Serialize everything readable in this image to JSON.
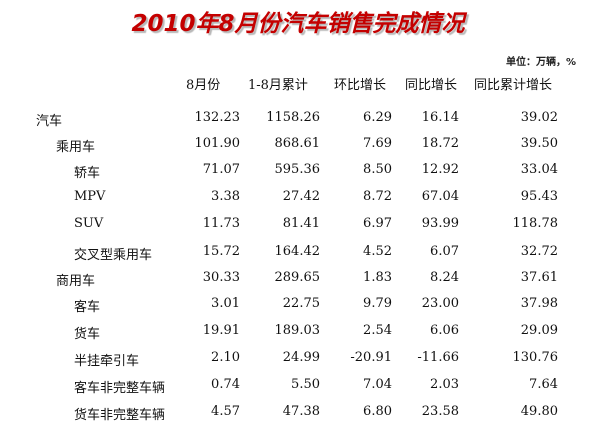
{
  "title": "2010年8月份汽车销售完成情况",
  "unit": "单位：万辆，%",
  "headers": [
    "8月份",
    "1-8月累计",
    "环比增长",
    "同比增长",
    "同比累计增长"
  ],
  "rows": [
    {
      "name": "汽车",
      "level": 0,
      "values": [
        "132.23",
        "1158.26",
        "6.29",
        "16.14",
        "39.02"
      ]
    },
    {
      "name": "乘用车",
      "level": 1,
      "values": [
        "101.90",
        "868.61",
        "7.69",
        "18.72",
        "39.50"
      ]
    },
    {
      "name": "轿车",
      "level": 2,
      "values": [
        "71.07",
        "595.36",
        "8.50",
        "12.92",
        "33.04"
      ]
    },
    {
      "name": "MPV",
      "level": 2,
      "values": [
        "3.38",
        "27.42",
        "8.72",
        "67.04",
        "95.43"
      ]
    },
    {
      "name": "SUV",
      "level": 2,
      "values": [
        "11.73",
        "81.41",
        "6.97",
        "93.99",
        "118.78"
      ]
    },
    {
      "name": "交叉型乘用车",
      "level": 2,
      "values": [
        "15.72",
        "164.42",
        "4.52",
        "6.07",
        "32.72"
      ]
    },
    {
      "name": "商用车",
      "level": 1,
      "values": [
        "30.33",
        "289.65",
        "1.83",
        "8.24",
        "37.61"
      ]
    },
    {
      "name": "客车",
      "level": 2,
      "values": [
        "3.01",
        "22.75",
        "9.79",
        "23.00",
        "37.98"
      ]
    },
    {
      "name": "货车",
      "level": 2,
      "values": [
        "19.91",
        "189.03",
        "2.54",
        "6.06",
        "29.09"
      ]
    },
    {
      "name": "半挂牵引车",
      "level": 2,
      "values": [
        "2.10",
        "24.99",
        "-20.91",
        "-11.66",
        "130.76"
      ]
    },
    {
      "name": "客车非完整车辆",
      "level": 2,
      "values": [
        "0.74",
        "5.50",
        "7.04",
        "2.03",
        "7.64"
      ]
    },
    {
      "name": "货车非完整车辆",
      "level": 2,
      "values": [
        "4.57",
        "47.38",
        "6.80",
        "23.58",
        "49.80"
      ]
    }
  ]
}
